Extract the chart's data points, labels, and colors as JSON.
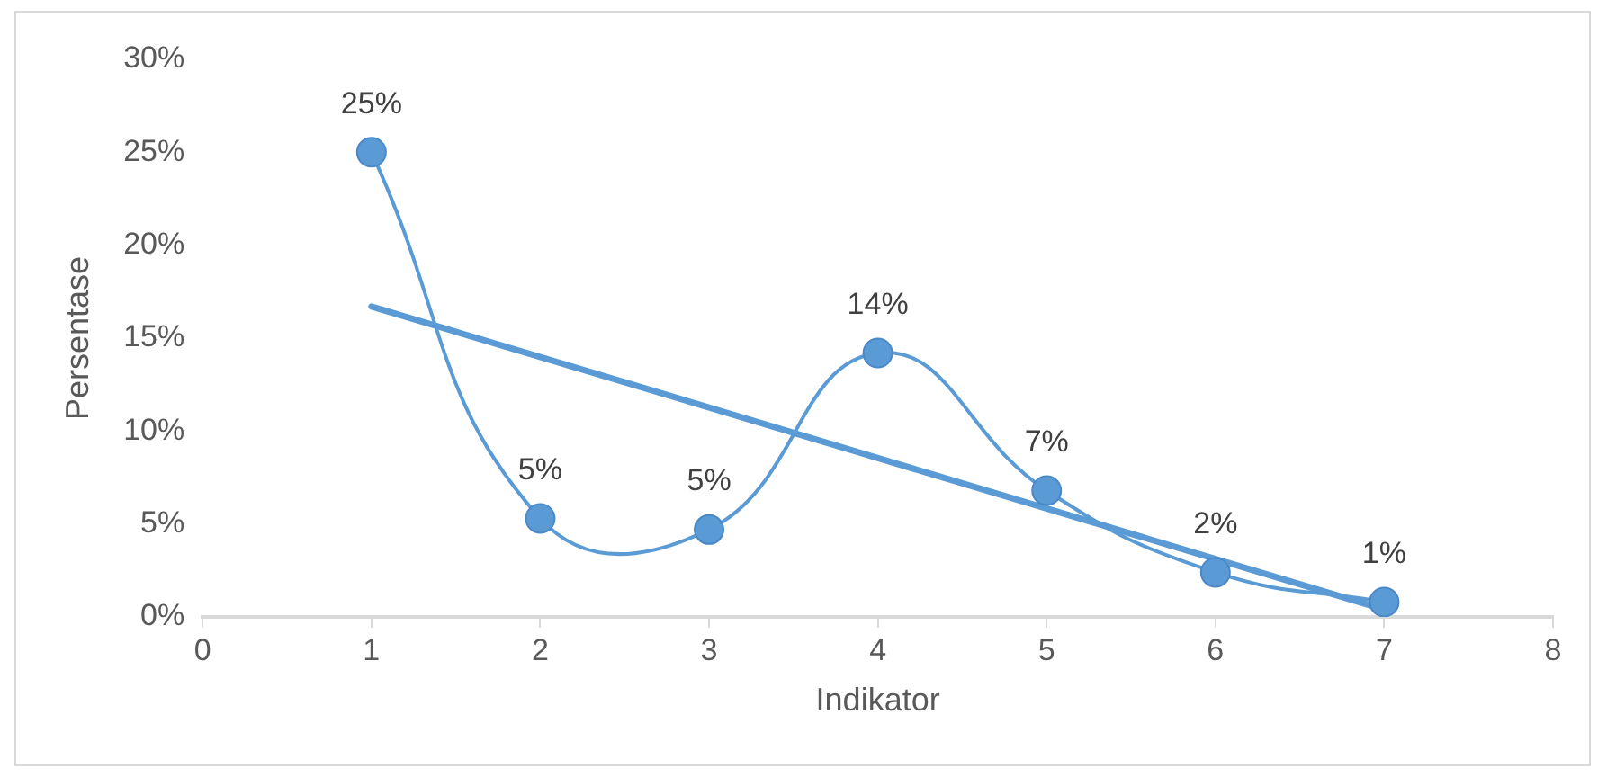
{
  "chart_data": {
    "type": "line",
    "xlabel": "Indikator",
    "ylabel": "Persentase",
    "x": [
      1,
      2,
      3,
      4,
      5,
      6,
      7
    ],
    "series": [
      {
        "color": "#5b9bd5",
        "marker": "circle",
        "values": [
          25,
          5.3,
          4.7,
          14.2,
          6.8,
          2.4,
          0.8
        ],
        "value_labels": [
          "25%",
          "5%",
          "5%",
          "14%",
          "7%",
          "2%",
          "1%"
        ]
      },
      {
        "color": "#5b9bd5",
        "marker": "none",
        "x": [
          1,
          7
        ],
        "values": [
          16.7,
          0.4
        ]
      }
    ],
    "xlim": [
      0,
      8
    ],
    "xticks": [
      0,
      1,
      2,
      3,
      4,
      5,
      6,
      7,
      8
    ],
    "ylim": [
      0,
      30
    ],
    "yticks": [
      {
        "value": 0,
        "label": "0%"
      },
      {
        "value": 5,
        "label": "5%"
      },
      {
        "value": 10,
        "label": "10%"
      },
      {
        "value": 15,
        "label": "15%"
      },
      {
        "value": 20,
        "label": "20%"
      },
      {
        "value": 25,
        "label": "25%"
      },
      {
        "value": 30,
        "label": "30%"
      }
    ],
    "grid": false,
    "legend": false
  }
}
